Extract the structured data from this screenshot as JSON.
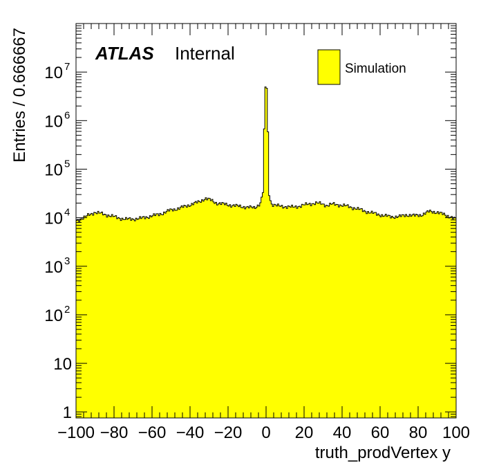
{
  "chart_data": {
    "type": "bar",
    "x_label": "truth_prodVertex y",
    "y_label": "Entries / 0.666667",
    "xlim": [
      -100,
      100
    ],
    "ylim": [
      0.75,
      100000000
    ],
    "y_scale": "log",
    "grid": false,
    "x_ticks": [
      -100,
      -80,
      -60,
      -40,
      -20,
      0,
      20,
      40,
      60,
      80,
      100
    ],
    "x_tick_labels": [
      "−100",
      "−80",
      "−60",
      "−40",
      "−20",
      "0",
      "20",
      "40",
      "60",
      "80",
      "100"
    ],
    "y_tick_labels": [
      {
        "value": 1,
        "base": "1",
        "exp": ""
      },
      {
        "value": 10,
        "base": "10",
        "exp": ""
      },
      {
        "value": 100,
        "base": "10",
        "exp": "2"
      },
      {
        "value": 1000,
        "base": "10",
        "exp": "3"
      },
      {
        "value": 10000,
        "base": "10",
        "exp": "4"
      },
      {
        "value": 100000,
        "base": "10",
        "exp": "5"
      },
      {
        "value": 1000000,
        "base": "10",
        "exp": "6"
      },
      {
        "value": 10000000,
        "base": "10",
        "exp": "7"
      }
    ],
    "bin_width": 0.666667,
    "histogram_color": "#ffff00",
    "series": [
      {
        "name": "Simulation",
        "profile": [
          [
            -100,
            8700
          ],
          [
            -96,
            10000
          ],
          [
            -93,
            11500
          ],
          [
            -90,
            13000
          ],
          [
            -86,
            12000
          ],
          [
            -82,
            11000
          ],
          [
            -78,
            10000
          ],
          [
            -74,
            9300
          ],
          [
            -70,
            9400
          ],
          [
            -66,
            9700
          ],
          [
            -62,
            10500
          ],
          [
            -58,
            11300
          ],
          [
            -54,
            12500
          ],
          [
            -50,
            14500
          ],
          [
            -46,
            15500
          ],
          [
            -42,
            17500
          ],
          [
            -38,
            19500
          ],
          [
            -35,
            21500
          ],
          [
            -32,
            25000
          ],
          [
            -29,
            23000
          ],
          [
            -26,
            20000
          ],
          [
            -22,
            19000
          ],
          [
            -18,
            18000
          ],
          [
            -14,
            17200
          ],
          [
            -10,
            16500
          ],
          [
            -6,
            16000
          ],
          [
            -3,
            20000
          ],
          [
            -1.5,
            35000
          ],
          [
            -0.7,
            4000000
          ],
          [
            0,
            6000000
          ],
          [
            0.7,
            3500000
          ],
          [
            1.5,
            30000
          ],
          [
            3,
            19000
          ],
          [
            6,
            17500
          ],
          [
            10,
            17000
          ],
          [
            14,
            16500
          ],
          [
            18,
            17500
          ],
          [
            22,
            19000
          ],
          [
            26,
            20000
          ],
          [
            29,
            19500
          ],
          [
            32,
            18000
          ],
          [
            35,
            19000
          ],
          [
            38,
            18500
          ],
          [
            42,
            17500
          ],
          [
            46,
            16000
          ],
          [
            50,
            14500
          ],
          [
            54,
            13000
          ],
          [
            58,
            12000
          ],
          [
            62,
            11000
          ],
          [
            66,
            10500
          ],
          [
            70,
            10500
          ],
          [
            74,
            11500
          ],
          [
            78,
            11000
          ],
          [
            82,
            11500
          ],
          [
            86,
            13500
          ],
          [
            90,
            13000
          ],
          [
            94,
            11500
          ],
          [
            97,
            10500
          ],
          [
            100,
            9200
          ]
        ]
      }
    ],
    "annotations": {
      "experiment": "ATLAS",
      "status": "Internal"
    },
    "legend": {
      "placement": "top-right",
      "entries": [
        "Simulation"
      ]
    }
  }
}
